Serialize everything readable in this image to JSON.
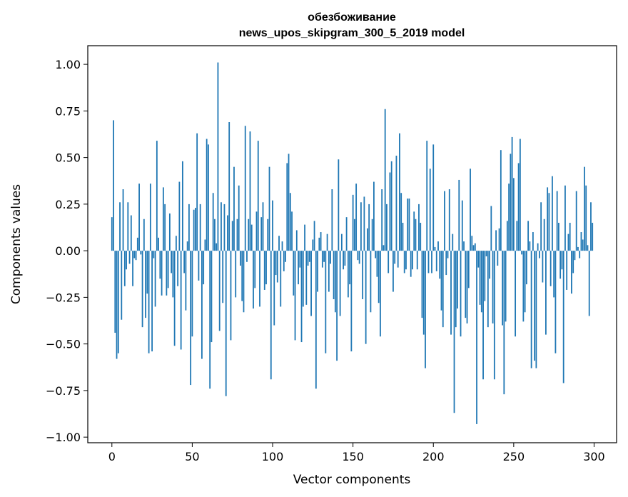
{
  "chart_data": {
    "type": "bar",
    "title": "обезбоживание",
    "subtitle": "news_upos_skipgram_300_5_2019 model",
    "xlabel": "Vector components",
    "ylabel": "Components values",
    "xlim": [
      -15,
      314
    ],
    "ylim": [
      -1.03,
      1.1
    ],
    "xticks": [
      0,
      50,
      100,
      150,
      200,
      250,
      300
    ],
    "yticks": [
      -1.0,
      -0.75,
      -0.5,
      -0.25,
      0.0,
      0.25,
      0.5,
      0.75,
      1.0
    ],
    "ytick_labels": [
      "−1.00",
      "−0.75",
      "−0.50",
      "−0.25",
      "0.00",
      "0.25",
      "0.50",
      "0.75",
      "1.00"
    ],
    "grid": false,
    "bar_color": "#1f77b4",
    "x": [
      0,
      1,
      2,
      3,
      4,
      5,
      6,
      7,
      8,
      9,
      10,
      11,
      12,
      13,
      14,
      15,
      16,
      17,
      18,
      19,
      20,
      21,
      22,
      23,
      24,
      25,
      26,
      27,
      28,
      29,
      30,
      31,
      32,
      33,
      34,
      35,
      36,
      37,
      38,
      39,
      40,
      41,
      42,
      43,
      44,
      45,
      46,
      47,
      48,
      49,
      50,
      51,
      52,
      53,
      54,
      55,
      56,
      57,
      58,
      59,
      60,
      61,
      62,
      63,
      64,
      65,
      66,
      67,
      68,
      69,
      70,
      71,
      72,
      73,
      74,
      75,
      76,
      77,
      78,
      79,
      80,
      81,
      82,
      83,
      84,
      85,
      86,
      87,
      88,
      89,
      90,
      91,
      92,
      93,
      94,
      95,
      96,
      97,
      98,
      99,
      100,
      101,
      102,
      103,
      104,
      105,
      106,
      107,
      108,
      109,
      110,
      111,
      112,
      113,
      114,
      115,
      116,
      117,
      118,
      119,
      120,
      121,
      122,
      123,
      124,
      125,
      126,
      127,
      128,
      129,
      130,
      131,
      132,
      133,
      134,
      135,
      136,
      137,
      138,
      139,
      140,
      141,
      142,
      143,
      144,
      145,
      146,
      147,
      148,
      149,
      150,
      151,
      152,
      153,
      154,
      155,
      156,
      157,
      158,
      159,
      160,
      161,
      162,
      163,
      164,
      165,
      166,
      167,
      168,
      169,
      170,
      171,
      172,
      173,
      174,
      175,
      176,
      177,
      178,
      179,
      180,
      181,
      182,
      183,
      184,
      185,
      186,
      187,
      188,
      189,
      190,
      191,
      192,
      193,
      194,
      195,
      196,
      197,
      198,
      199,
      200,
      201,
      202,
      203,
      204,
      205,
      206,
      207,
      208,
      209,
      210,
      211,
      212,
      213,
      214,
      215,
      216,
      217,
      218,
      219,
      220,
      221,
      222,
      223,
      224,
      225,
      226,
      227,
      228,
      229,
      230,
      231,
      232,
      233,
      234,
      235,
      236,
      237,
      238,
      239,
      240,
      241,
      242,
      243,
      244,
      245,
      246,
      247,
      248,
      249,
      250,
      251,
      252,
      253,
      254,
      255,
      256,
      257,
      258,
      259,
      260,
      261,
      262,
      263,
      264,
      265,
      266,
      267,
      268,
      269,
      270,
      271,
      272,
      273,
      274,
      275,
      276,
      277,
      278,
      279,
      280,
      281,
      282,
      283,
      284,
      285,
      286,
      287,
      288,
      289,
      290,
      291,
      292,
      293,
      294,
      295,
      296,
      297,
      298,
      299
    ],
    "values": [
      0.18,
      0.7,
      -0.44,
      -0.58,
      -0.55,
      0.26,
      -0.37,
      0.33,
      -0.19,
      -0.1,
      0.26,
      -0.07,
      0.19,
      -0.19,
      -0.04,
      -0.05,
      0.07,
      0.36,
      -0.02,
      -0.41,
      0.17,
      -0.36,
      -0.23,
      -0.55,
      0.36,
      -0.54,
      -0.04,
      -0.3,
      0.59,
      0.07,
      -0.15,
      -0.24,
      0.34,
      0.25,
      -0.24,
      -0.2,
      0.2,
      -0.12,
      -0.25,
      -0.51,
      0.08,
      -0.19,
      0.37,
      -0.53,
      0.48,
      -0.12,
      -0.32,
      0.05,
      0.25,
      -0.72,
      -0.46,
      0.22,
      0.23,
      0.63,
      -0.16,
      0.25,
      -0.58,
      -0.18,
      0.06,
      0.6,
      0.57,
      -0.74,
      -0.49,
      0.31,
      0.17,
      0.04,
      1.01,
      -0.43,
      0.26,
      -0.28,
      0.25,
      -0.78,
      0.19,
      0.69,
      -0.48,
      0.16,
      0.45,
      -0.25,
      0.17,
      0.35,
      -0.08,
      -0.27,
      -0.33,
      0.67,
      -0.06,
      0.17,
      0.64,
      0.14,
      -0.31,
      -0.2,
      0.21,
      0.59,
      -0.3,
      0.18,
      0.26,
      -0.21,
      -0.18,
      0.17,
      0.45,
      -0.69,
      0.27,
      -0.4,
      -0.13,
      -0.17,
      0.08,
      -0.3,
      0.05,
      -0.11,
      -0.06,
      0.47,
      0.52,
      0.31,
      0.21,
      -0.24,
      -0.48,
      0.11,
      -0.18,
      -0.09,
      -0.49,
      -0.3,
      0.14,
      -0.29,
      -0.08,
      -0.06,
      -0.35,
      0.06,
      0.16,
      -0.74,
      -0.22,
      0.07,
      0.1,
      -0.09,
      -0.06,
      -0.55,
      0.09,
      -0.22,
      -0.07,
      0.33,
      -0.26,
      -0.33,
      -0.59,
      0.49,
      -0.35,
      0.09,
      -0.1,
      -0.08,
      0.18,
      -0.25,
      -0.18,
      -0.54,
      0.3,
      0.17,
      0.36,
      -0.05,
      -0.07,
      0.26,
      -0.26,
      0.29,
      -0.5,
      0.12,
      0.25,
      -0.33,
      0.17,
      0.37,
      -0.04,
      -0.14,
      -0.28,
      -0.46,
      0.33,
      0.03,
      0.76,
      0.25,
      -0.12,
      0.42,
      0.48,
      -0.22,
      -0.07,
      0.51,
      -0.09,
      0.63,
      0.31,
      0.15,
      -0.12,
      -0.1,
      0.28,
      0.28,
      -0.14,
      -0.1,
      0.21,
      0.17,
      -0.1,
      0.25,
      0.15,
      -0.36,
      -0.45,
      -0.63,
      0.59,
      -0.12,
      0.44,
      -0.12,
      0.57,
      0.02,
      -0.11,
      0.05,
      -0.15,
      -0.32,
      -0.41,
      0.32,
      -0.13,
      -0.04,
      0.33,
      -0.45,
      0.09,
      -0.87,
      -0.41,
      -0.31,
      0.38,
      -0.46,
      0.27,
      0.05,
      -0.36,
      -0.39,
      -0.2,
      0.44,
      0.08,
      0.03,
      0.04,
      -0.93,
      -0.09,
      -0.29,
      -0.33,
      -0.69,
      -0.27,
      -0.03,
      -0.41,
      -0.15,
      0.24,
      -0.39,
      -0.69,
      0.11,
      -0.08,
      0.12,
      0.54,
      -0.4,
      -0.77,
      -0.38,
      0.16,
      0.36,
      0.52,
      0.61,
      0.39,
      -0.46,
      0.16,
      0.47,
      0.6,
      -0.02,
      -0.38,
      -0.33,
      -0.18,
      0.16,
      0.05,
      -0.63,
      0.1,
      -0.59,
      -0.63,
      0.04,
      -0.04,
      0.26,
      -0.17,
      0.17,
      -0.45,
      0.34,
      0.31,
      -0.19,
      0.4,
      -0.25,
      -0.55,
      0.32,
      0.15,
      -0.15,
      -0.1,
      -0.71,
      0.35,
      -0.21,
      0.09,
      0.15,
      -0.23,
      -0.12,
      -0.05,
      0.32,
      0.02,
      -0.04,
      0.1,
      0.06,
      0.45,
      0.35,
      0.03,
      -0.35,
      0.26,
      0.15
    ]
  }
}
